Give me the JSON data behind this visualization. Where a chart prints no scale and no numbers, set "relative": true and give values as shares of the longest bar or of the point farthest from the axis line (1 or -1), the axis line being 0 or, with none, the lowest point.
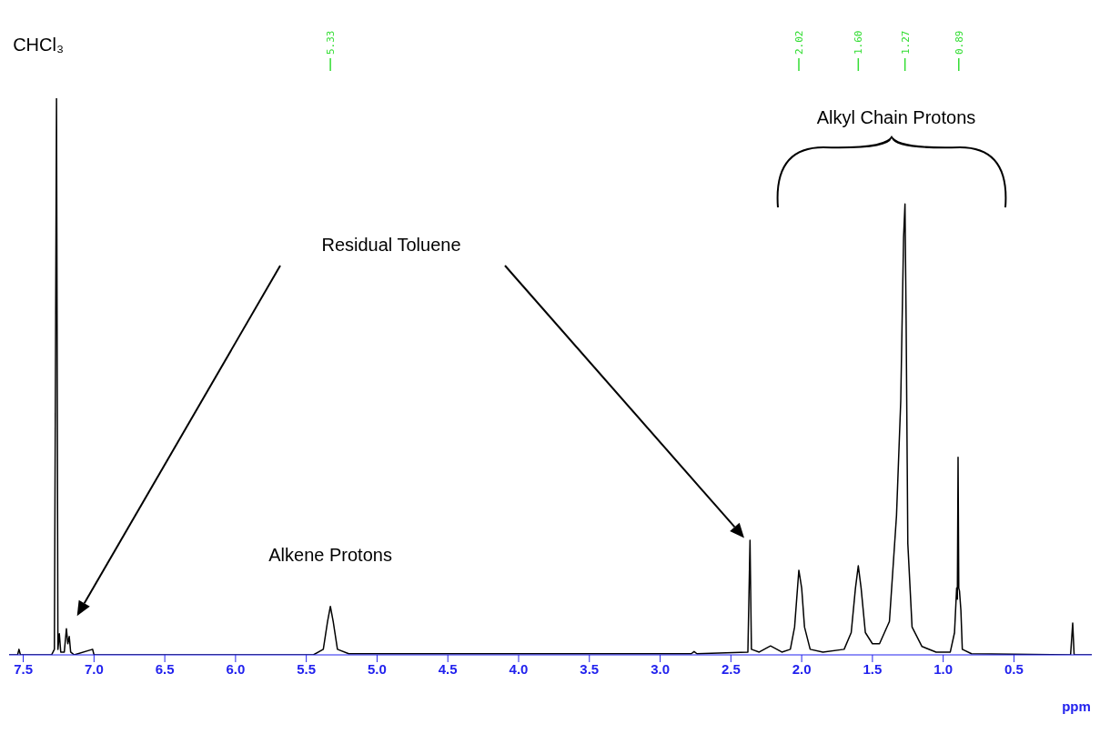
{
  "chart_data": {
    "type": "line",
    "relative": true,
    "xlabel": "ppm",
    "xlim": [
      7.6,
      -0.05
    ],
    "xticks": [
      {
        "value": 7.5,
        "label": "7.5"
      },
      {
        "value": 7,
        "label": "7.0"
      },
      {
        "value": 6.5,
        "label": "6.5"
      },
      {
        "value": 6,
        "label": "6.0"
      },
      {
        "value": 5.5,
        "label": "5.5"
      },
      {
        "value": 5,
        "label": "5.0"
      },
      {
        "value": 4.5,
        "label": "4.5"
      },
      {
        "value": 4,
        "label": "4.0"
      },
      {
        "value": 3.5,
        "label": "3.5"
      },
      {
        "value": 3,
        "label": "3.0"
      },
      {
        "value": 2.5,
        "label": "2.5"
      },
      {
        "value": 2,
        "label": "2.0"
      },
      {
        "value": 1.5,
        "label": "1.5"
      },
      {
        "value": 1,
        "label": "1.0"
      },
      {
        "value": 0.5,
        "label": "0.5"
      }
    ],
    "marker": "none",
    "line_style": "solid",
    "series": [
      {
        "color": "#000000",
        "x": [
          7.6,
          7.54,
          7.53,
          7.52,
          7.3,
          7.28,
          7.265,
          7.255,
          7.245,
          7.235,
          7.21,
          7.195,
          7.185,
          7.175,
          7.165,
          7.14,
          7.01,
          7.0,
          5.45,
          5.38,
          5.35,
          5.33,
          5.31,
          5.28,
          5.2,
          2.78,
          2.76,
          2.74,
          2.38,
          2.365,
          2.355,
          2.3,
          2.25,
          2.22,
          2.19,
          2.14,
          2.08,
          2.05,
          2.02,
          2.0,
          1.98,
          1.94,
          1.85,
          1.7,
          1.65,
          1.62,
          1.6,
          1.58,
          1.55,
          1.5,
          1.45,
          1.38,
          1.33,
          1.3,
          1.28,
          1.27,
          1.262,
          1.25,
          1.22,
          1.15,
          1.05,
          0.95,
          0.92,
          0.905,
          0.9,
          0.895,
          0.89,
          0.885,
          0.875,
          0.865,
          0.8,
          0.1,
          0.085,
          0.075,
          -0.05
        ],
        "values": [
          0,
          0,
          0.01,
          0,
          0,
          0.01,
          1,
          0.01,
          0.038,
          0.005,
          0.005,
          0.047,
          0.02,
          0.033,
          0.005,
          0,
          0.01,
          0,
          0,
          0.01,
          0.06,
          0.087,
          0.06,
          0.01,
          0.002,
          0.002,
          0.006,
          0.002,
          0.005,
          0.206,
          0.01,
          0.005,
          0.012,
          0.016,
          0.012,
          0.005,
          0.01,
          0.05,
          0.152,
          0.12,
          0.05,
          0.01,
          0.005,
          0.01,
          0.04,
          0.12,
          0.16,
          0.12,
          0.04,
          0.02,
          0.02,
          0.06,
          0.25,
          0.456,
          0.75,
          0.81,
          0.6,
          0.2,
          0.05,
          0.015,
          0.005,
          0.005,
          0.04,
          0.12,
          0.1,
          0.355,
          0.12,
          0.115,
          0.08,
          0.01,
          0.002,
          0,
          0.057,
          0,
          0
        ]
      }
    ],
    "annotations": [
      {
        "text": "5.33",
        "x": 5.33
      },
      {
        "text": "2.02",
        "x": 2.02
      },
      {
        "text": "1.60",
        "x": 1.6
      },
      {
        "text": "1.27",
        "x": 1.27
      },
      {
        "text": "0.89",
        "x": 0.89
      },
      {
        "text": "CHCl₃",
        "x": 7.265,
        "y": 1
      },
      {
        "text": "Alkene Protons",
        "x": 5.33,
        "y": 0.087
      },
      "Residual Toluene",
      "Alkyl Chain Protons"
    ]
  }
}
